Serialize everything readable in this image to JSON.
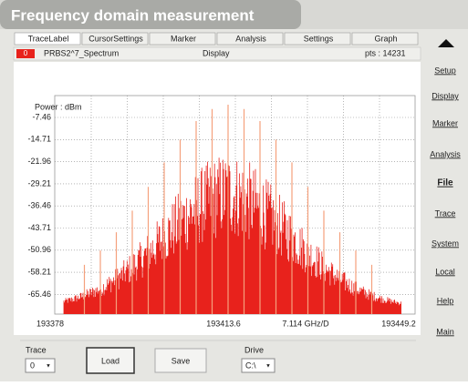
{
  "header": {
    "title": "Frequency domain measurement"
  },
  "tabs": [
    "TraceLabel",
    "CursorSettings",
    "Marker",
    "Analysis",
    "Settings",
    "Graph"
  ],
  "trace_info": {
    "index": "0",
    "name": "PRBS2^7_Spectrum",
    "mode": "Display",
    "points": "pts : 14231"
  },
  "plot": {
    "y_label": "Power : dBm",
    "y_ticks": [
      "-7.46",
      "-14.71",
      "-21.96",
      "-29.21",
      "-36.46",
      "-43.71",
      "-50.96",
      "-58.21",
      "-65.46"
    ],
    "x_ticks": [
      "193378",
      "193413.6",
      "7.114 GHz/D",
      "193449.2"
    ]
  },
  "side_menu": [
    "Setup",
    "Display",
    "Marker",
    "Analysis",
    "File",
    "Trace",
    "System",
    "Local",
    "Help",
    "Main"
  ],
  "bottom": {
    "trace_label": "Trace",
    "trace_value": "0",
    "load": "Load",
    "save": "Save",
    "drive_label": "Drive",
    "drive_value": "C:\\"
  }
}
